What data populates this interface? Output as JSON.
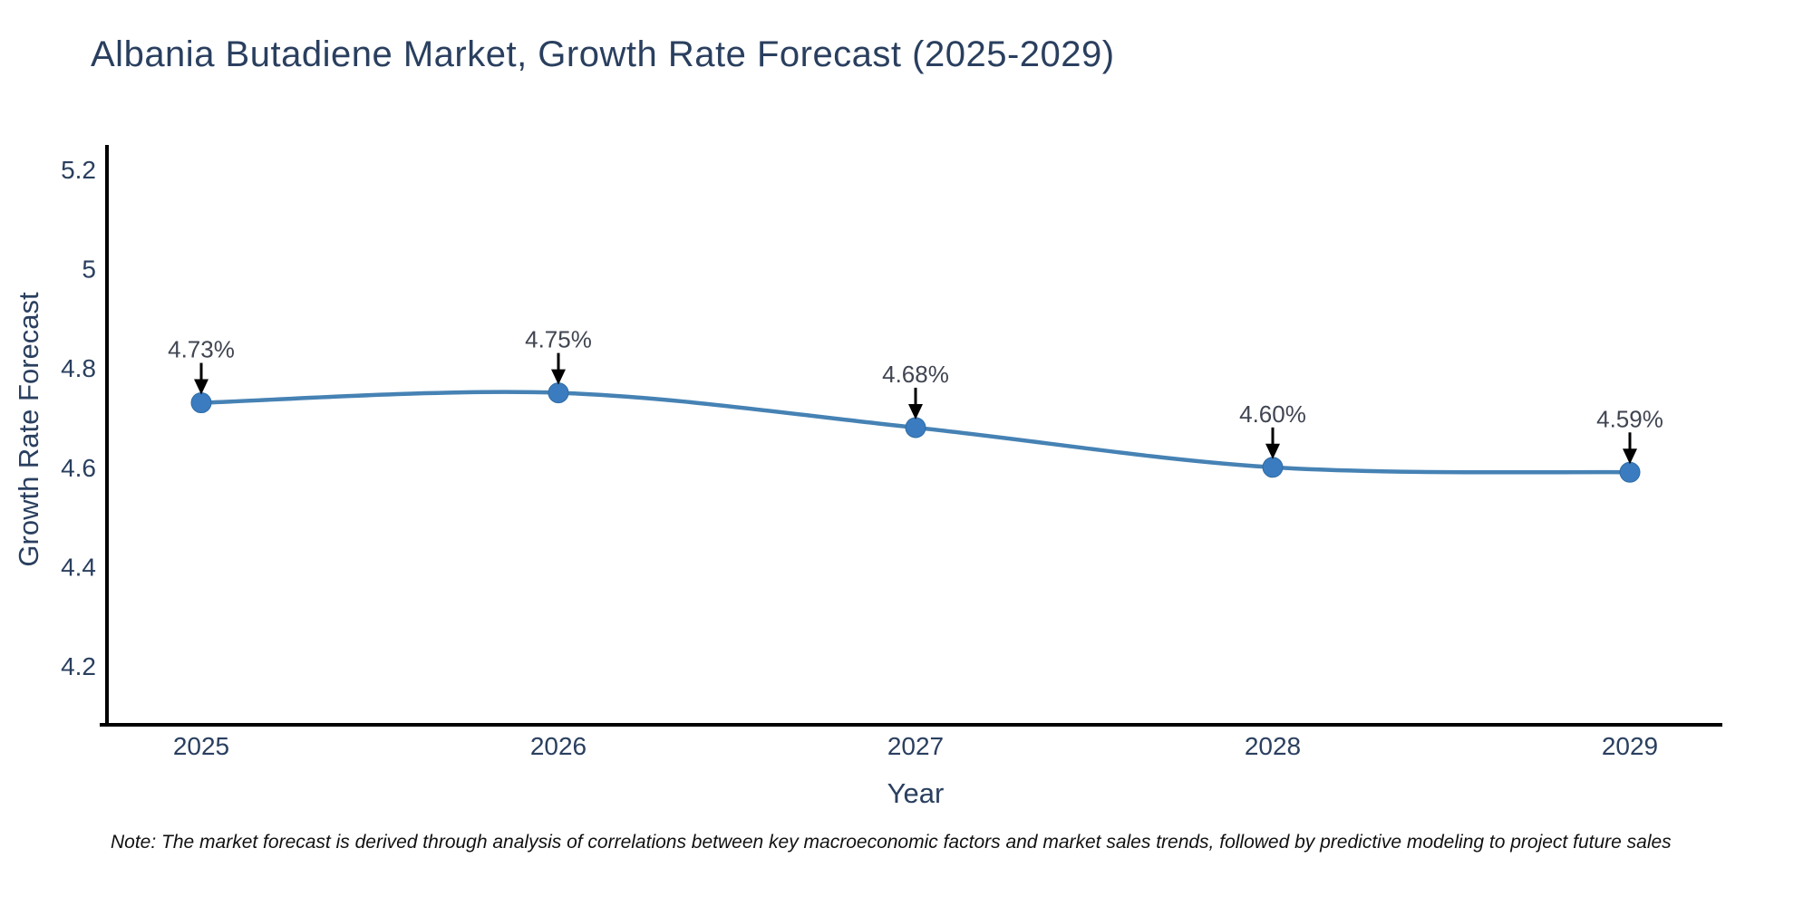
{
  "chart_data": {
    "type": "line",
    "title": "Albania Butadiene Market, Growth Rate Forecast (2025-2029)",
    "xlabel": "Year",
    "ylabel": "Growth Rate Forecast",
    "categories": [
      "2025",
      "2026",
      "2027",
      "2028",
      "2029"
    ],
    "series": [
      {
        "name": "Growth Rate Forecast",
        "values": [
          4.73,
          4.75,
          4.68,
          4.6,
          4.59
        ]
      }
    ],
    "point_labels": [
      "4.73%",
      "4.75%",
      "4.68%",
      "4.60%",
      "4.59%"
    ],
    "y_tick_values": [
      5.2,
      5.0,
      4.8,
      4.6,
      4.4,
      4.2
    ],
    "y_tick_labels": [
      "5.2",
      "5",
      "4.8",
      "4.6",
      "4.4",
      "4.2"
    ],
    "ylim": [
      4.08,
      5.25
    ],
    "grid": false,
    "legend_position": "none",
    "line_shape": "spline",
    "colors": {
      "line": "#4682b4",
      "marker": "#3b7cc0",
      "marker_edge": "#2f6ba3",
      "axis": "#000000",
      "tick_text": "#2a3f5f",
      "annotation_text": "#404552",
      "arrow": "#000000"
    }
  },
  "note": {
    "text": "Note: The market forecast is derived through analysis of correlations between key macroeconomic factors and market sales trends, followed by predictive modeling to project future sales"
  }
}
